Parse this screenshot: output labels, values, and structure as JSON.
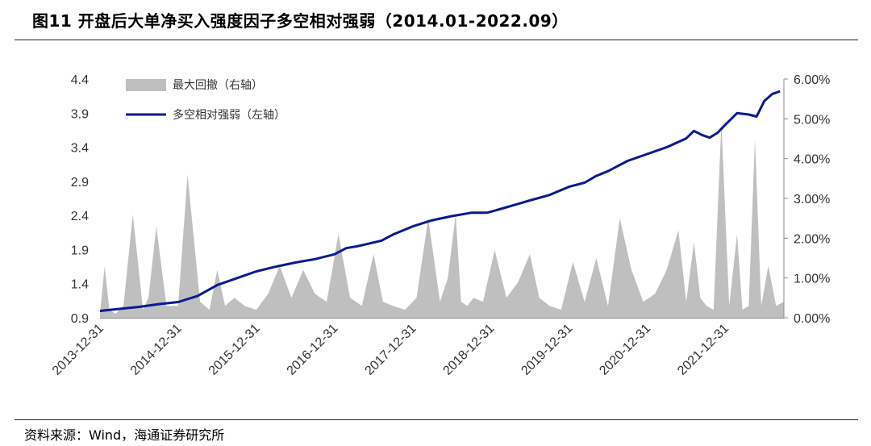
{
  "header": {
    "title": "图11 开盘后大单净买入强度因子多空相对强弱（2014.01-2022.09）"
  },
  "footer": {
    "source": "资料来源：Wind，海通证券研究所"
  },
  "colors": {
    "line": "#0b1a8f",
    "area": "#bfbfbf"
  },
  "chart_data": {
    "type": "line",
    "title": "",
    "x_tick_labels": [
      "2013-12-31",
      "2014-12-31",
      "2015-12-31",
      "2016-12-31",
      "2017-12-31",
      "2018-12-31",
      "2019-12-31",
      "2020-12-31",
      "2021-12-31"
    ],
    "x_range": [
      2014.0,
      2022.75
    ],
    "y_left": {
      "label": "",
      "range": [
        0.9,
        4.4
      ],
      "ticks": [
        "0.9",
        "1.4",
        "1.9",
        "2.4",
        "2.9",
        "3.4",
        "3.9",
        "4.4"
      ]
    },
    "y_right": {
      "label": "",
      "range": [
        0,
        6
      ],
      "ticks": [
        "0.00%",
        "1.00%",
        "2.00%",
        "3.00%",
        "4.00%",
        "5.00%",
        "6.00%"
      ]
    },
    "legend": {
      "placement": "top-left",
      "items": [
        "最大回撤（右轴）",
        "多空相对强弱（左轴）"
      ]
    },
    "series": [
      {
        "name": "多空相对强弱（左轴）",
        "axis": "left",
        "type": "line",
        "x": [
          2014.0,
          2014.25,
          2014.5,
          2014.75,
          2015.0,
          2015.25,
          2015.5,
          2015.75,
          2016.0,
          2016.25,
          2016.5,
          2016.75,
          2017.0,
          2017.15,
          2017.3,
          2017.45,
          2017.6,
          2017.75,
          2018.0,
          2018.25,
          2018.5,
          2018.75,
          2018.95,
          2019.05,
          2019.2,
          2019.35,
          2019.5,
          2019.75,
          2020.0,
          2020.2,
          2020.35,
          2020.5,
          2020.75,
          2021.0,
          2021.25,
          2021.5,
          2021.6,
          2021.7,
          2021.8,
          2021.9,
          2022.0,
          2022.15,
          2022.3,
          2022.4,
          2022.5,
          2022.6,
          2022.7
        ],
        "y": [
          1.0,
          1.03,
          1.06,
          1.1,
          1.13,
          1.22,
          1.38,
          1.48,
          1.58,
          1.65,
          1.71,
          1.76,
          1.83,
          1.92,
          1.95,
          1.99,
          2.03,
          2.12,
          2.24,
          2.33,
          2.39,
          2.44,
          2.44,
          2.47,
          2.52,
          2.57,
          2.62,
          2.7,
          2.82,
          2.88,
          2.98,
          3.05,
          3.2,
          3.3,
          3.4,
          3.53,
          3.64,
          3.58,
          3.54,
          3.61,
          3.73,
          3.9,
          3.88,
          3.85,
          4.08,
          4.18,
          4.22
        ]
      },
      {
        "name": "最大回撤（右轴）",
        "axis": "right",
        "type": "area",
        "x": [
          2014.0,
          2014.06,
          2014.12,
          2014.2,
          2014.3,
          2014.42,
          2014.55,
          2014.62,
          2014.72,
          2014.85,
          2015.0,
          2015.12,
          2015.28,
          2015.4,
          2015.5,
          2015.6,
          2015.72,
          2015.85,
          2016.0,
          2016.15,
          2016.3,
          2016.45,
          2016.6,
          2016.75,
          2016.9,
          2017.05,
          2017.2,
          2017.35,
          2017.5,
          2017.62,
          2017.75,
          2017.9,
          2018.05,
          2018.2,
          2018.35,
          2018.45,
          2018.55,
          2018.62,
          2018.7,
          2018.78,
          2018.9,
          2019.05,
          2019.2,
          2019.35,
          2019.5,
          2019.62,
          2019.75,
          2019.9,
          2020.05,
          2020.2,
          2020.35,
          2020.5,
          2020.65,
          2020.8,
          2020.95,
          2021.1,
          2021.25,
          2021.4,
          2021.5,
          2021.6,
          2021.68,
          2021.76,
          2021.85,
          2021.95,
          2022.05,
          2022.15,
          2022.22,
          2022.3,
          2022.38,
          2022.46,
          2022.55,
          2022.65,
          2022.75
        ],
        "y": [
          0.1,
          1.3,
          0.2,
          0.1,
          0.3,
          2.6,
          0.2,
          0.5,
          2.3,
          0.3,
          0.3,
          3.6,
          0.4,
          0.2,
          1.2,
          0.3,
          0.5,
          0.3,
          0.2,
          0.6,
          1.3,
          0.5,
          1.2,
          0.6,
          0.4,
          2.1,
          0.5,
          0.3,
          1.6,
          0.4,
          0.3,
          0.2,
          0.5,
          2.5,
          0.4,
          1.0,
          2.6,
          0.4,
          0.3,
          0.5,
          0.4,
          1.7,
          0.5,
          0.9,
          1.6,
          0.5,
          0.3,
          0.2,
          1.4,
          0.4,
          1.5,
          0.3,
          2.5,
          1.2,
          0.4,
          0.6,
          1.2,
          2.2,
          0.4,
          1.9,
          0.5,
          0.3,
          0.2,
          4.9,
          0.3,
          2.1,
          0.2,
          0.3,
          4.5,
          0.3,
          1.3,
          0.3,
          0.4
        ]
      }
    ]
  }
}
